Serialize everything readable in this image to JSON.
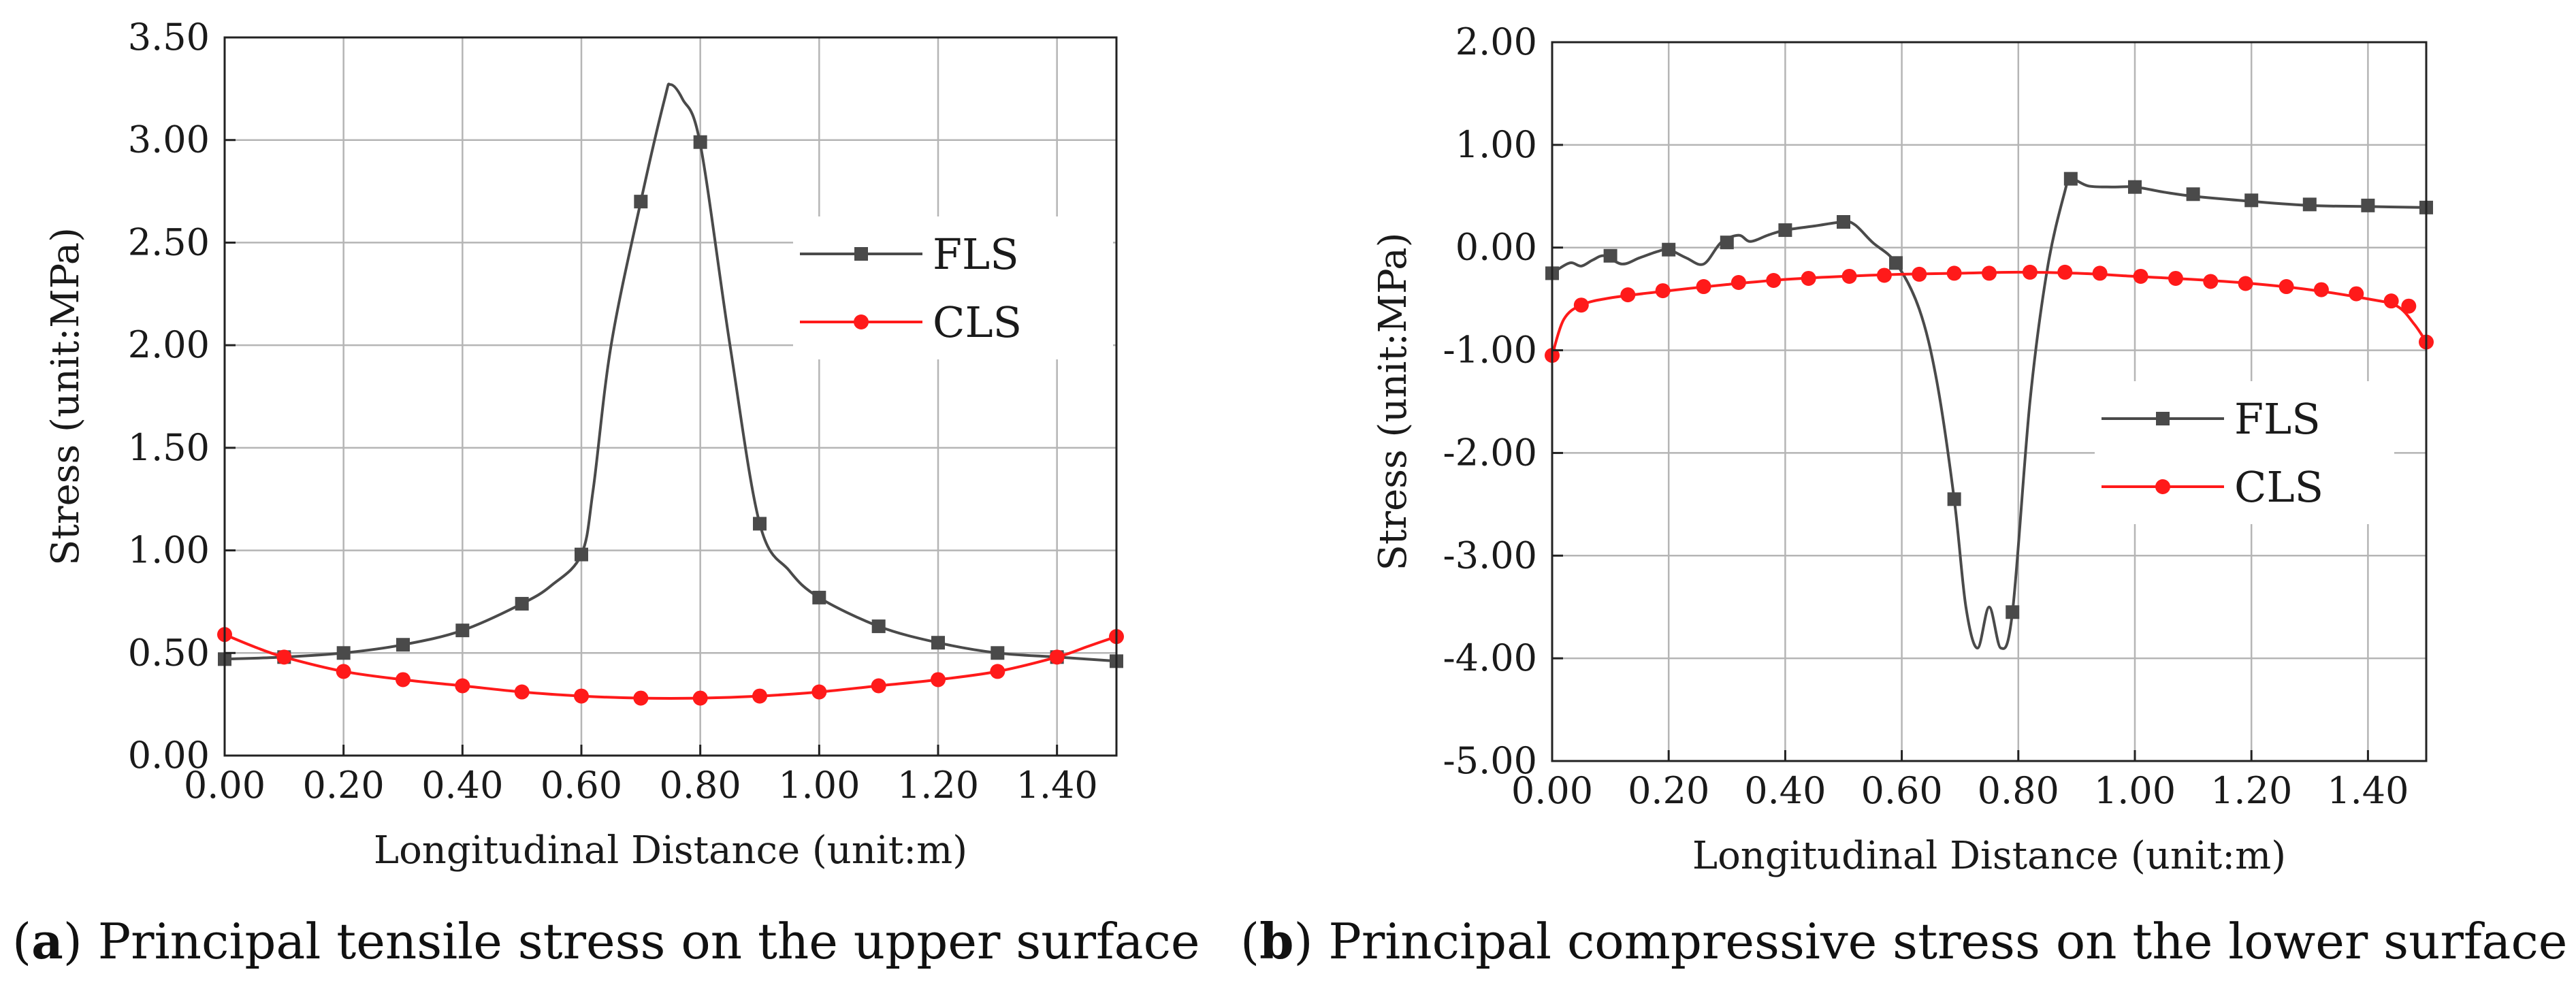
{
  "chart_data": [
    {
      "id": "a",
      "type": "line",
      "title": "",
      "xlabel": "Longitudinal Distance (unit:m)",
      "ylabel": "Stress (unit:MPa)",
      "xlim": [
        0,
        1.5
      ],
      "ylim": [
        0,
        3.5
      ],
      "xticks": [
        0,
        0.2,
        0.4,
        0.6,
        0.8,
        1.0,
        1.2,
        1.4
      ],
      "xtick_labels": [
        "0.00",
        "0.20",
        "0.40",
        "0.60",
        "0.80",
        "1.00",
        "1.20",
        "1.40"
      ],
      "yticks": [
        0,
        0.5,
        1.0,
        1.5,
        2.0,
        2.5,
        3.0,
        3.5
      ],
      "ytick_labels": [
        "0.00",
        "0.50",
        "1.00",
        "1.50",
        "2.00",
        "2.50",
        "3.00",
        "3.50"
      ],
      "grid": true,
      "legend_position": "top-right",
      "caption_tag": "a",
      "caption_text": " Principal tensile stress on the upper surface",
      "series": [
        {
          "name": "FLS",
          "color": "#4a4a4a",
          "marker": "square",
          "curve": [
            [
              0,
              0.47
            ],
            [
              0.1,
              0.48
            ],
            [
              0.2,
              0.5
            ],
            [
              0.3,
              0.54
            ],
            [
              0.4,
              0.61
            ],
            [
              0.5,
              0.74
            ],
            [
              0.55,
              0.83
            ],
            [
              0.6,
              0.98
            ],
            [
              0.62,
              1.3
            ],
            [
              0.65,
              2.0
            ],
            [
              0.7,
              2.7
            ],
            [
              0.74,
              3.2
            ],
            [
              0.75,
              3.27
            ],
            [
              0.77,
              3.2
            ],
            [
              0.8,
              2.98
            ],
            [
              0.85,
              2.0
            ],
            [
              0.9,
              1.13
            ],
            [
              0.95,
              0.9
            ],
            [
              1.0,
              0.77
            ],
            [
              1.1,
              0.63
            ],
            [
              1.2,
              0.55
            ],
            [
              1.3,
              0.5
            ],
            [
              1.4,
              0.48
            ],
            [
              1.5,
              0.46
            ]
          ],
          "points": [
            [
              0,
              0.47
            ],
            [
              0.1,
              0.48
            ],
            [
              0.2,
              0.5
            ],
            [
              0.3,
              0.54
            ],
            [
              0.4,
              0.61
            ],
            [
              0.5,
              0.74
            ],
            [
              0.6,
              0.98
            ],
            [
              0.7,
              2.7
            ],
            [
              0.8,
              2.99
            ],
            [
              0.9,
              1.13
            ],
            [
              1.0,
              0.77
            ],
            [
              1.1,
              0.63
            ],
            [
              1.2,
              0.55
            ],
            [
              1.3,
              0.5
            ],
            [
              1.4,
              0.48
            ],
            [
              1.5,
              0.46
            ]
          ]
        },
        {
          "name": "CLS",
          "color": "#ff1a1a",
          "marker": "circle",
          "curve": [
            [
              0,
              0.59
            ],
            [
              0.05,
              0.53
            ],
            [
              0.1,
              0.48
            ],
            [
              0.2,
              0.41
            ],
            [
              0.3,
              0.37
            ],
            [
              0.4,
              0.34
            ],
            [
              0.5,
              0.31
            ],
            [
              0.6,
              0.29
            ],
            [
              0.7,
              0.28
            ],
            [
              0.8,
              0.28
            ],
            [
              0.9,
              0.29
            ],
            [
              1.0,
              0.31
            ],
            [
              1.1,
              0.34
            ],
            [
              1.2,
              0.37
            ],
            [
              1.3,
              0.41
            ],
            [
              1.4,
              0.48
            ],
            [
              1.45,
              0.53
            ],
            [
              1.5,
              0.58
            ]
          ],
          "points": [
            [
              0,
              0.59
            ],
            [
              0.1,
              0.48
            ],
            [
              0.2,
              0.41
            ],
            [
              0.3,
              0.37
            ],
            [
              0.4,
              0.34
            ],
            [
              0.5,
              0.31
            ],
            [
              0.6,
              0.29
            ],
            [
              0.7,
              0.28
            ],
            [
              0.8,
              0.28
            ],
            [
              0.9,
              0.29
            ],
            [
              1.0,
              0.31
            ],
            [
              1.1,
              0.34
            ],
            [
              1.2,
              0.37
            ],
            [
              1.3,
              0.41
            ],
            [
              1.4,
              0.48
            ],
            [
              1.5,
              0.58
            ]
          ]
        }
      ]
    },
    {
      "id": "b",
      "type": "line",
      "title": "",
      "xlabel": "Longitudinal Distance (unit:m)",
      "ylabel": "Stress (unit:MPa)",
      "xlim": [
        0,
        1.5
      ],
      "ylim": [
        -5,
        2
      ],
      "xticks": [
        0,
        0.2,
        0.4,
        0.6,
        0.8,
        1.0,
        1.2,
        1.4
      ],
      "xtick_labels": [
        "0.00",
        "0.20",
        "0.40",
        "0.60",
        "0.80",
        "1.00",
        "1.20",
        "1.40"
      ],
      "yticks": [
        -5,
        -4,
        -3,
        -2,
        -1,
        0,
        1,
        2
      ],
      "ytick_labels": [
        "-5.00",
        "-4.00",
        "-3.00",
        "-2.00",
        "-1.00",
        "0.00",
        "1.00",
        "2.00"
      ],
      "grid": true,
      "legend_position": "center-right",
      "caption_tag": "b",
      "caption_text": " Principal compressive stress on the lower surface",
      "series": [
        {
          "name": "FLS",
          "color": "#4a4a4a",
          "marker": "square",
          "curve": [
            [
              0,
              -0.25
            ],
            [
              0.03,
              -0.15
            ],
            [
              0.05,
              -0.18
            ],
            [
              0.07,
              -0.12
            ],
            [
              0.09,
              -0.08
            ],
            [
              0.12,
              -0.16
            ],
            [
              0.15,
              -0.1
            ],
            [
              0.18,
              -0.04
            ],
            [
              0.2,
              -0.02
            ],
            [
              0.23,
              -0.1
            ],
            [
              0.26,
              -0.16
            ],
            [
              0.29,
              0.05
            ],
            [
              0.32,
              0.12
            ],
            [
              0.34,
              0.06
            ],
            [
              0.37,
              0.12
            ],
            [
              0.4,
              0.17
            ],
            [
              0.45,
              0.21
            ],
            [
              0.5,
              0.25
            ],
            [
              0.52,
              0.22
            ],
            [
              0.55,
              0.05
            ],
            [
              0.59,
              -0.15
            ],
            [
              0.63,
              -0.6
            ],
            [
              0.66,
              -1.3
            ],
            [
              0.69,
              -2.45
            ],
            [
              0.71,
              -3.5
            ],
            [
              0.73,
              -3.9
            ],
            [
              0.75,
              -3.5
            ],
            [
              0.77,
              -3.9
            ],
            [
              0.79,
              -3.55
            ],
            [
              0.82,
              -1.5
            ],
            [
              0.85,
              -0.2
            ],
            [
              0.88,
              0.55
            ],
            [
              0.89,
              0.67
            ],
            [
              0.92,
              0.6
            ],
            [
              0.96,
              0.59
            ],
            [
              1.0,
              0.59
            ],
            [
              1.05,
              0.54
            ],
            [
              1.1,
              0.5
            ],
            [
              1.2,
              0.45
            ],
            [
              1.3,
              0.41
            ],
            [
              1.4,
              0.4
            ],
            [
              1.5,
              0.39
            ]
          ],
          "points": [
            [
              0,
              -0.25
            ],
            [
              0.1,
              -0.08
            ],
            [
              0.2,
              -0.02
            ],
            [
              0.3,
              0.05
            ],
            [
              0.4,
              0.17
            ],
            [
              0.5,
              0.25
            ],
            [
              0.59,
              -0.15
            ],
            [
              0.69,
              -2.45
            ],
            [
              0.79,
              -3.55
            ],
            [
              0.89,
              0.67
            ],
            [
              1.0,
              0.59
            ],
            [
              1.1,
              0.52
            ],
            [
              1.2,
              0.46
            ],
            [
              1.3,
              0.42
            ],
            [
              1.4,
              0.41
            ],
            [
              1.5,
              0.39
            ]
          ]
        },
        {
          "name": "CLS",
          "color": "#ff1a1a",
          "marker": "circle",
          "curve": [
            [
              0,
              -1.05
            ],
            [
              0.02,
              -0.7
            ],
            [
              0.05,
              -0.56
            ],
            [
              0.1,
              -0.49
            ],
            [
              0.2,
              -0.42
            ],
            [
              0.3,
              -0.36
            ],
            [
              0.4,
              -0.31
            ],
            [
              0.5,
              -0.28
            ],
            [
              0.6,
              -0.26
            ],
            [
              0.7,
              -0.25
            ],
            [
              0.8,
              -0.24
            ],
            [
              0.9,
              -0.25
            ],
            [
              1.0,
              -0.28
            ],
            [
              1.1,
              -0.31
            ],
            [
              1.2,
              -0.35
            ],
            [
              1.3,
              -0.41
            ],
            [
              1.4,
              -0.5
            ],
            [
              1.45,
              -0.57
            ],
            [
              1.48,
              -0.75
            ],
            [
              1.5,
              -0.92
            ]
          ],
          "points": [
            [
              0,
              -1.05
            ],
            [
              0.05,
              -0.56
            ],
            [
              0.13,
              -0.46
            ],
            [
              0.19,
              -0.42
            ],
            [
              0.26,
              -0.38
            ],
            [
              0.32,
              -0.34
            ],
            [
              0.38,
              -0.32
            ],
            [
              0.44,
              -0.3
            ],
            [
              0.51,
              -0.28
            ],
            [
              0.57,
              -0.27
            ],
            [
              0.63,
              -0.26
            ],
            [
              0.69,
              -0.25
            ],
            [
              0.75,
              -0.25
            ],
            [
              0.82,
              -0.24
            ],
            [
              0.88,
              -0.24
            ],
            [
              0.94,
              -0.25
            ],
            [
              1.01,
              -0.28
            ],
            [
              1.07,
              -0.3
            ],
            [
              1.13,
              -0.33
            ],
            [
              1.19,
              -0.35
            ],
            [
              1.26,
              -0.38
            ],
            [
              1.32,
              -0.41
            ],
            [
              1.38,
              -0.45
            ],
            [
              1.44,
              -0.52
            ],
            [
              1.47,
              -0.57
            ],
            [
              1.5,
              -0.92
            ]
          ]
        }
      ]
    }
  ]
}
